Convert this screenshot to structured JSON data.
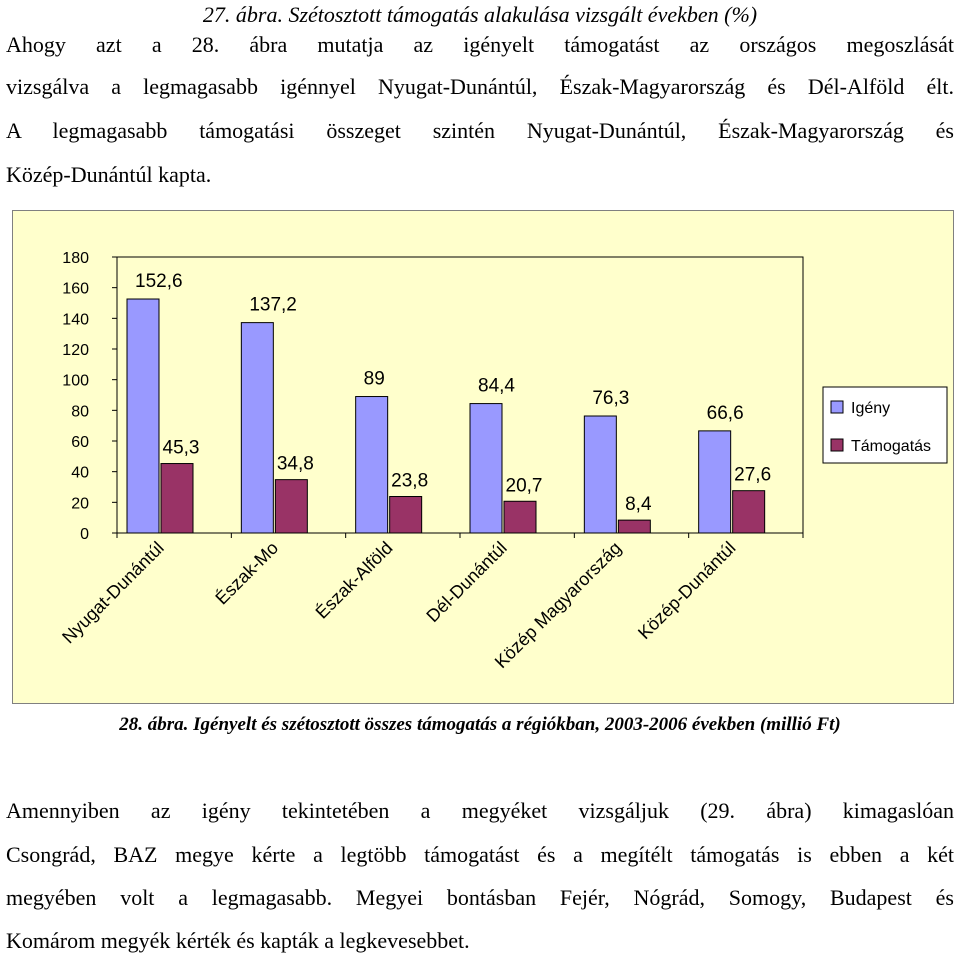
{
  "header": {
    "caption_27": "27. ábra. Szétosztott támogatás alakulása vizsgált években (%)"
  },
  "intro_lines": [
    "Ahogy azt a 28. ábra mutatja az igényelt támogatást az országos megoszlását",
    "vizsgálva a legmagasabb igénnyel Nyugat-Dunántúl, Észak-Magyarország és Dél-Alföld élt.",
    "A legmagasabb támogatási összeget szintén Nyugat-Dunántúl, Észak-Magyarország és",
    "Közép-Dunántúl kapta."
  ],
  "chart_data": {
    "type": "bar",
    "categories": [
      "Nyugat-Dunántúl",
      "Észak-Mo",
      "Észak-Alföld",
      "Dél-Dunántúl",
      "Közép Magyarország",
      "Közép-Dunántúl"
    ],
    "series": [
      {
        "name": "Igény",
        "values": [
          152.6,
          137.2,
          89,
          84.4,
          76.3,
          66.6
        ],
        "labels": [
          "152,6",
          "137,2",
          "89",
          "84,4",
          "76,3",
          "66,6"
        ],
        "color": "#9999ff"
      },
      {
        "name": "Támogatás",
        "values": [
          45.3,
          34.8,
          23.8,
          20.7,
          8.4,
          27.6
        ],
        "labels": [
          "45,3",
          "34,8",
          "23,8",
          "20,7",
          "8,4",
          "27,6"
        ],
        "color": "#993366"
      }
    ],
    "ylim": [
      0,
      180
    ],
    "yticks": [
      "0",
      "20",
      "40",
      "60",
      "80",
      "100",
      "120",
      "140",
      "160",
      "180"
    ],
    "grid": false,
    "legend": "right",
    "plot_background": "#ffffcc"
  },
  "figure_caption": "28. ábra. Igényelt és szétosztott összes támogatás a régiókban, 2003-2006 években (millió Ft)",
  "outro_lines": [
    "Amennyiben az igény tekintetében a megyéket vizsgáljuk (29. ábra) kimagaslóan",
    "Csongrád, BAZ megye kérte a legtöbb támogatást és a megítélt támogatás is ebben a két",
    "megyében volt a legmagasabb. Megyei bontásban Fejér, Nógrád, Somogy, Budapest és",
    "Komárom megyék kérték és kapták a legkevesebbet."
  ]
}
